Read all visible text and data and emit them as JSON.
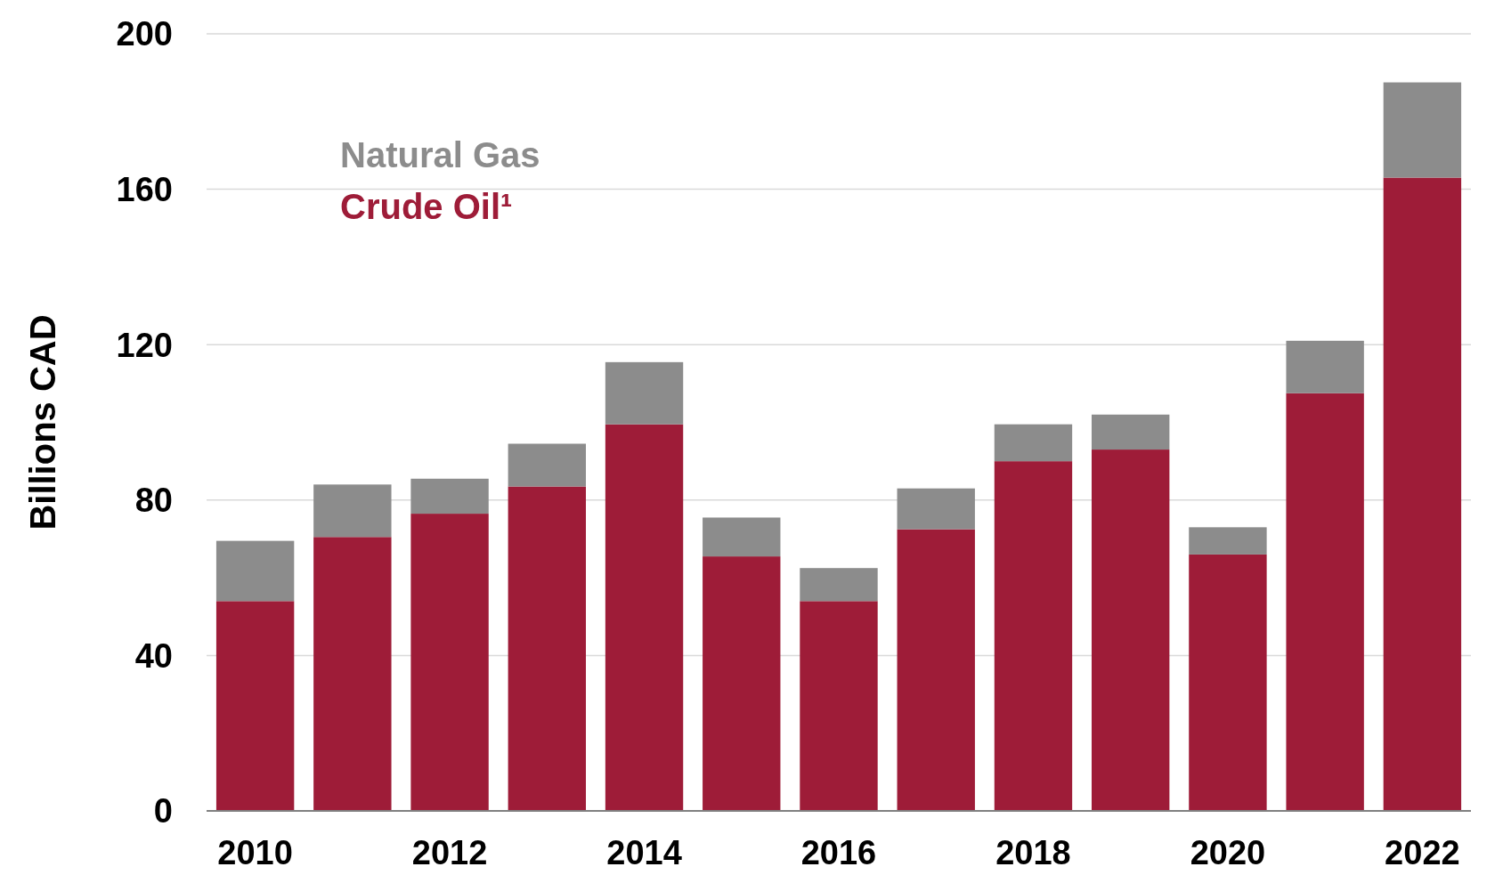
{
  "chart_data": {
    "type": "bar",
    "ylabel": "Billions CAD",
    "stacked": true,
    "categories": [
      "2010",
      null,
      "2012",
      null,
      "2014",
      null,
      "2016",
      null,
      "2018",
      null,
      "2020",
      null,
      "2022"
    ],
    "series": [
      {
        "name": "Crude Oil¹",
        "color": "#9e1c38",
        "values": [
          54,
          70.5,
          76.5,
          83.5,
          99.5,
          65.5,
          54,
          72.5,
          90,
          93,
          66,
          107.5,
          163
        ]
      },
      {
        "name": "Natural Gas",
        "color": "#8c8c8c",
        "values": [
          15.5,
          13.5,
          9,
          11,
          16,
          10,
          8.5,
          10.5,
          9.5,
          9,
          7,
          13.5,
          24.5
        ]
      }
    ],
    "ylim": [
      0,
      200
    ],
    "yticks": [
      0,
      40,
      80,
      120,
      160,
      200
    ],
    "grid": "y",
    "legend": "top left"
  }
}
